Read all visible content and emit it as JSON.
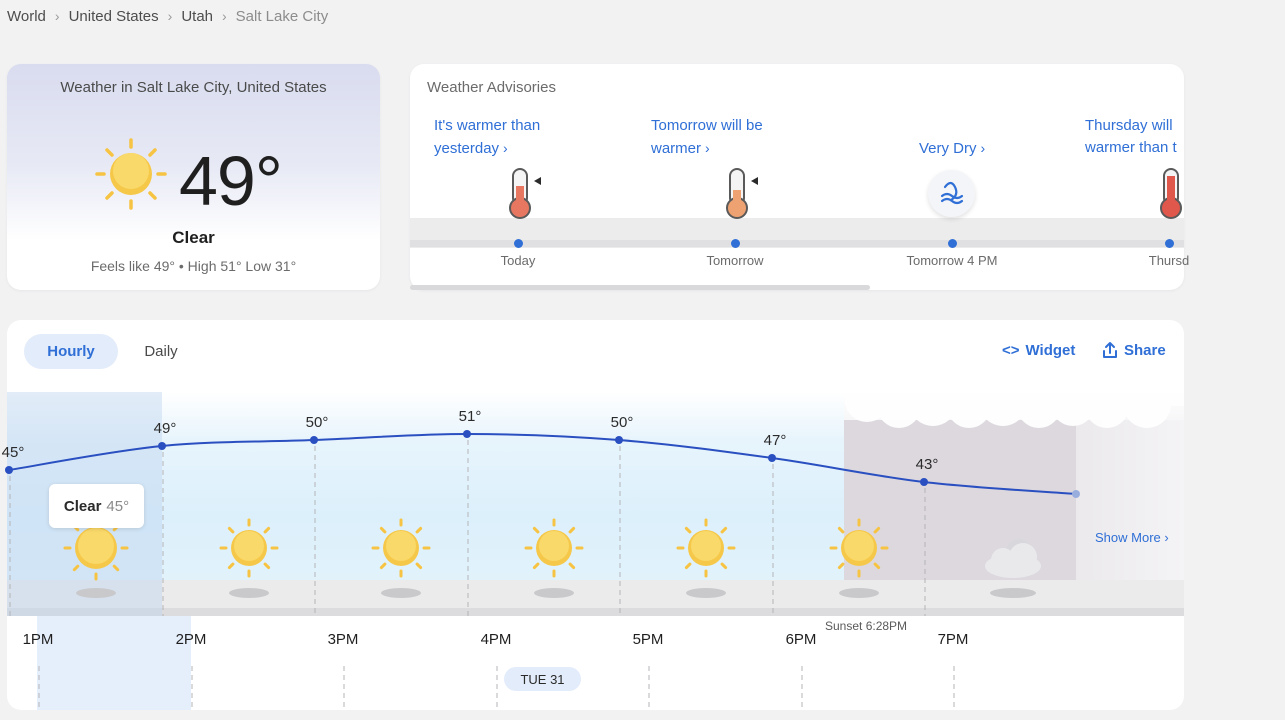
{
  "breadcrumb": {
    "items": [
      "World",
      "United States",
      "Utah"
    ],
    "current": "Salt Lake City",
    "separator": "›"
  },
  "current": {
    "title": "Weather in Salt Lake City, United States",
    "temperature": "49°",
    "condition": "Clear",
    "details": "Feels like 49° • High 51° Low 31°",
    "icon": "sun-icon"
  },
  "advisories": {
    "title": "Weather Advisories",
    "items": [
      {
        "text_line1": "It's warmer than",
        "text_line2": "yesterday",
        "when": "Today",
        "icon": "thermometer-warm-icon"
      },
      {
        "text_line1": "Tomorrow will be",
        "text_line2": "warmer",
        "when": "Tomorrow",
        "icon": "thermometer-warm-icon"
      },
      {
        "text_line1": "",
        "text_line2": "Very Dry",
        "when": "Tomorrow 4 PM",
        "icon": "dry-air-icon"
      },
      {
        "text_line1": "Thursday will",
        "text_line2": "warmer than t",
        "when": "Thursd",
        "icon": "thermometer-hot-icon"
      }
    ]
  },
  "forecast": {
    "tabs": [
      {
        "label": "Hourly",
        "active": true
      },
      {
        "label": "Daily",
        "active": false
      }
    ],
    "actions": {
      "widget": "Widget",
      "share": "Share"
    },
    "tooltip": {
      "condition": "Clear",
      "temp": "45°"
    },
    "hours": [
      {
        "time": "1PM",
        "temp": "45°",
        "icon": "sun-icon"
      },
      {
        "time": "2PM",
        "temp": "49°",
        "icon": "sun-icon"
      },
      {
        "time": "3PM",
        "temp": "50°",
        "icon": "sun-icon"
      },
      {
        "time": "4PM",
        "temp": "51°",
        "icon": "sun-icon"
      },
      {
        "time": "5PM",
        "temp": "50°",
        "icon": "sun-icon"
      },
      {
        "time": "6PM",
        "temp": "47°",
        "icon": "sun-icon"
      },
      {
        "time": "7PM",
        "temp": "43°",
        "icon": "partly-cloudy-night-icon"
      }
    ],
    "sunset": "Sunset 6:28PM",
    "day_pill": "TUE 31",
    "show_more": "Show More ›"
  },
  "colors": {
    "accent": "#2f6fd6",
    "line": "#2a4fc0",
    "sun": "#f6c343"
  }
}
